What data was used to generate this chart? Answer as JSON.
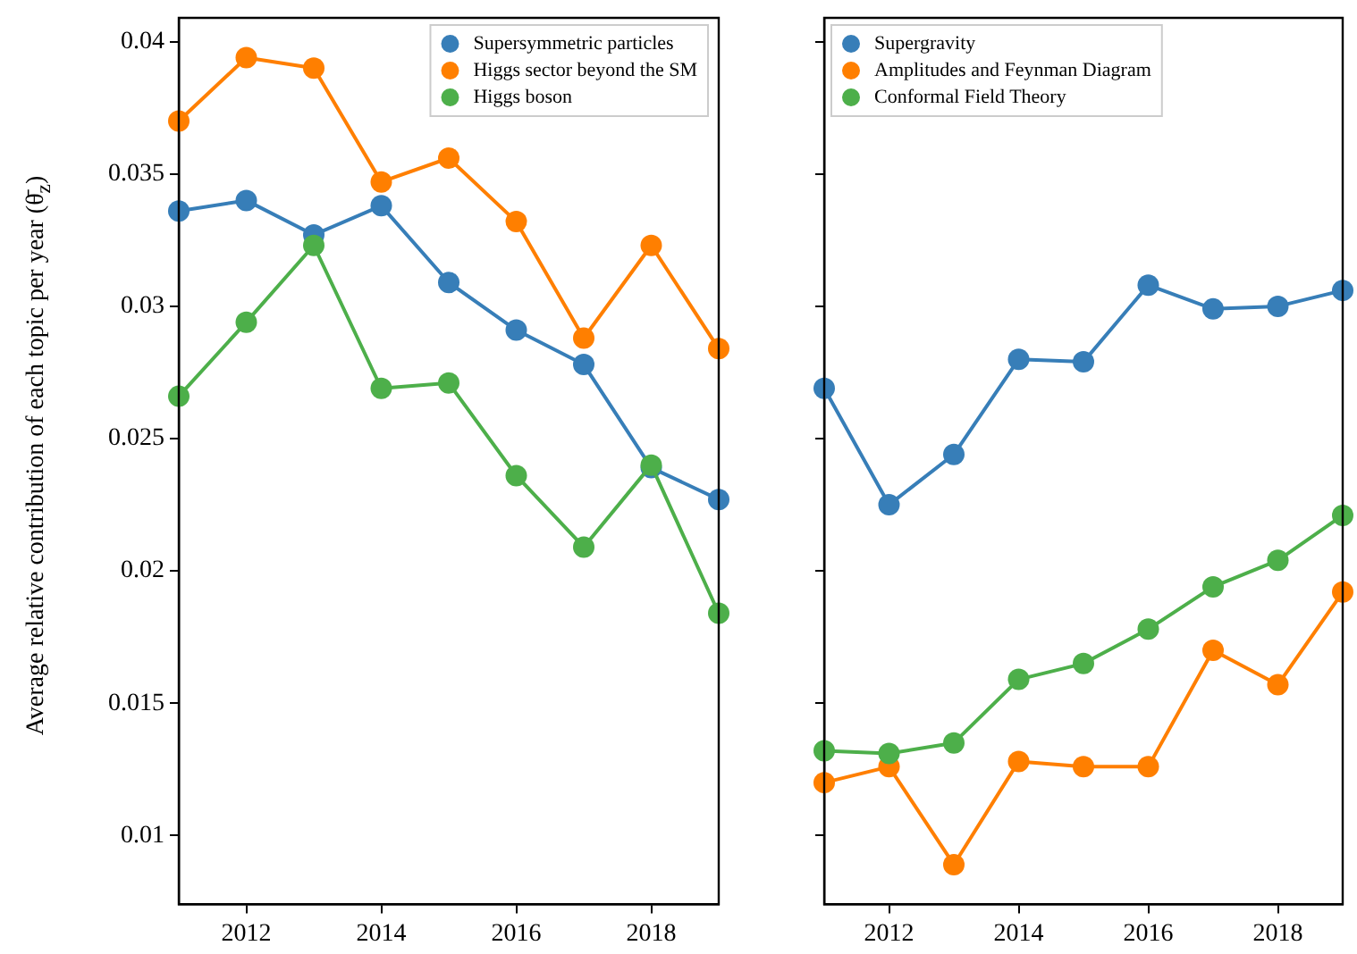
{
  "chart_data": [
    {
      "type": "line",
      "ylabel": "Average relative contribution of each topic per year (θ̄$_{z}$)",
      "x": [
        2011,
        2012,
        2013,
        2014,
        2015,
        2016,
        2017,
        2018,
        2019
      ],
      "xlim": [
        2011,
        2019
      ],
      "xticks": [
        2012,
        2014,
        2016,
        2018
      ],
      "ylim": [
        0.0074,
        0.0409
      ],
      "yticks": [
        0.01,
        0.015,
        0.02,
        0.025,
        0.03,
        0.035,
        0.04
      ],
      "marker": "circle",
      "grid": false,
      "legend": "top right",
      "series": [
        {
          "name": "Supersymmetric particles",
          "color": "#377eb8",
          "values": [
            0.0336,
            0.034,
            0.0327,
            0.0338,
            0.0309,
            0.0291,
            0.0278,
            0.0239,
            0.0227
          ]
        },
        {
          "name": "Higgs sector beyond the SM",
          "color": "#ff7f00",
          "values": [
            0.037,
            0.0394,
            0.039,
            0.0347,
            0.0356,
            0.0332,
            0.0288,
            0.0323,
            0.0284
          ]
        },
        {
          "name": "Higgs boson",
          "color": "#4daf4a",
          "values": [
            0.0266,
            0.0294,
            0.0323,
            0.0269,
            0.0271,
            0.0236,
            0.0209,
            0.024,
            0.0184
          ]
        }
      ]
    },
    {
      "type": "line",
      "x": [
        2011,
        2012,
        2013,
        2014,
        2015,
        2016,
        2017,
        2018,
        2019
      ],
      "xlim": [
        2011,
        2019
      ],
      "xticks": [
        2012,
        2014,
        2016,
        2018
      ],
      "ylim": [
        0.0074,
        0.0409
      ],
      "yticks": [
        {
          "value": 0.01,
          "label": null
        },
        {
          "value": 0.015,
          "label": null
        },
        {
          "value": 0.02,
          "label": null
        },
        {
          "value": 0.025,
          "label": null
        },
        {
          "value": 0.03,
          "label": null
        },
        {
          "value": 0.035,
          "label": null
        },
        {
          "value": 0.04,
          "label": null
        }
      ],
      "tick_labels": "x",
      "marker": "circle",
      "grid": false,
      "legend": "top left",
      "series": [
        {
          "name": "Supergravity",
          "color": "#377eb8",
          "values": [
            0.0269,
            0.0225,
            0.0244,
            0.028,
            0.0279,
            0.0308,
            0.0299,
            0.03,
            0.0306
          ]
        },
        {
          "name": "Amplitudes and Feynman Diagram",
          "color": "#ff7f00",
          "values": [
            0.012,
            0.0126,
            0.0089,
            0.0128,
            0.0126,
            0.0126,
            0.017,
            0.0157,
            0.0192
          ]
        },
        {
          "name": "Conformal Field Theory",
          "color": "#4daf4a",
          "values": [
            0.0132,
            0.0131,
            0.0135,
            0.0159,
            0.0165,
            0.0178,
            0.0194,
            0.0204,
            0.0221
          ]
        }
      ]
    }
  ]
}
